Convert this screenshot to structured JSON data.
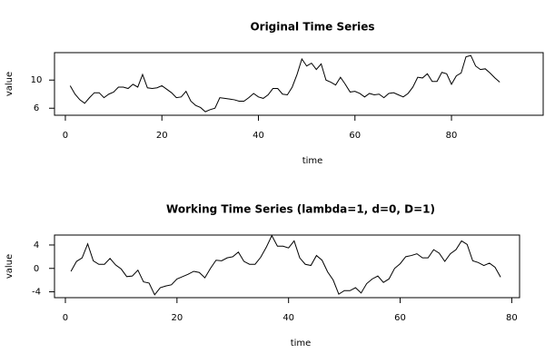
{
  "chart_data": [
    {
      "type": "line",
      "title": "Original Time Series",
      "x_label": "time",
      "y_label": "value",
      "color": "#000000",
      "x": [
        1,
        2,
        3,
        4,
        5,
        6,
        7,
        8,
        9,
        10,
        11,
        12,
        13,
        14,
        15,
        16,
        17,
        18,
        19,
        20,
        21,
        22,
        23,
        24,
        25,
        26,
        27,
        28,
        29,
        30,
        31,
        32,
        33,
        34,
        35,
        36,
        37,
        38,
        39,
        40,
        41,
        42,
        43,
        44,
        45,
        46,
        47,
        48,
        49,
        50,
        51,
        52,
        53,
        54,
        55,
        56,
        57,
        58,
        59,
        60,
        61,
        62,
        63,
        64,
        65,
        66,
        67,
        68,
        69,
        70,
        71,
        72,
        73,
        74,
        75,
        76,
        77,
        78,
        79,
        80,
        81,
        82,
        83,
        84,
        85,
        86,
        87,
        88,
        89,
        90
      ],
      "values": [
        9.2,
        8.0,
        7.2,
        6.7,
        7.5,
        8.2,
        8.2,
        7.5,
        8.0,
        8.3,
        9.0,
        9.0,
        8.8,
        9.4,
        9.0,
        10.8,
        8.9,
        8.8,
        8.9,
        9.2,
        8.7,
        8.2,
        7.5,
        7.6,
        8.4,
        7.0,
        6.4,
        6.1,
        5.5,
        5.8,
        6.0,
        7.5,
        7.4,
        7.3,
        7.2,
        7.0,
        7.0,
        7.5,
        8.1,
        7.6,
        7.4,
        7.9,
        8.8,
        8.8,
        8.0,
        7.9,
        9.0,
        10.8,
        13.0,
        12.0,
        12.4,
        11.5,
        12.3,
        10.0,
        9.7,
        9.3,
        10.4,
        9.4,
        8.3,
        8.4,
        8.1,
        7.6,
        8.1,
        7.9,
        8.0,
        7.5,
        8.1,
        8.2,
        7.9,
        7.6,
        8.1,
        9.0,
        10.4,
        10.3,
        10.9,
        9.8,
        9.8,
        11.1,
        10.9,
        9.4,
        10.6,
        11.0,
        13.3,
        13.5,
        12.0,
        11.5,
        11.6,
        11.0,
        10.3,
        9.7
      ],
      "xlim": [
        -2.25,
        99
      ],
      "xticks": [
        0,
        20,
        40,
        60,
        80
      ],
      "ylim": [
        5,
        13.9
      ],
      "yticks": [
        6,
        10
      ]
    },
    {
      "type": "line",
      "title": "Working Time Series (lambda=1, d=0, D=1)",
      "x_label": "time",
      "y_label": "value",
      "color": "#000000",
      "x": [
        1,
        2,
        3,
        4,
        5,
        6,
        7,
        8,
        9,
        10,
        11,
        12,
        13,
        14,
        15,
        16,
        17,
        18,
        19,
        20,
        21,
        22,
        23,
        24,
        25,
        26,
        27,
        28,
        29,
        30,
        31,
        32,
        33,
        34,
        35,
        36,
        37,
        38,
        39,
        40,
        41,
        42,
        43,
        44,
        45,
        46,
        47,
        48,
        49,
        50,
        51,
        52,
        53,
        54,
        55,
        56,
        57,
        58,
        59,
        60,
        61,
        62,
        63,
        64,
        65,
        66,
        67,
        68,
        69,
        70,
        71,
        72,
        73,
        74,
        75,
        76,
        77,
        78
      ],
      "values": [
        -0.5,
        1.2,
        1.8,
        4.2,
        1.3,
        0.7,
        0.7,
        1.7,
        0.6,
        -0.1,
        -1.4,
        -1.3,
        -0.3,
        -2.3,
        -2.5,
        -4.5,
        -3.3,
        -3.0,
        -2.8,
        -1.8,
        -1.4,
        -1.0,
        -0.5,
        -0.7,
        -1.6,
        0.0,
        1.4,
        1.3,
        1.8,
        2.0,
        2.8,
        1.2,
        0.7,
        0.7,
        1.9,
        3.6,
        5.6,
        3.8,
        3.8,
        3.5,
        4.7,
        1.8,
        0.7,
        0.5,
        2.2,
        1.4,
        -0.6,
        -2.0,
        -4.4,
        -3.8,
        -3.8,
        -3.3,
        -4.2,
        -2.6,
        -1.8,
        -1.3,
        -2.4,
        -1.8,
        0.0,
        0.8,
        2.0,
        2.2,
        2.5,
        1.8,
        1.8,
        3.2,
        2.6,
        1.2,
        2.5,
        3.2,
        4.7,
        4.1,
        1.3,
        1.0,
        0.5,
        0.9,
        0.2,
        -1.5
      ],
      "xlim": [
        -1.95,
        81.4
      ],
      "xticks": [
        0,
        20,
        40,
        60,
        80
      ],
      "ylim": [
        -5,
        5.7
      ],
      "yticks": [
        -4,
        0,
        4
      ]
    }
  ]
}
